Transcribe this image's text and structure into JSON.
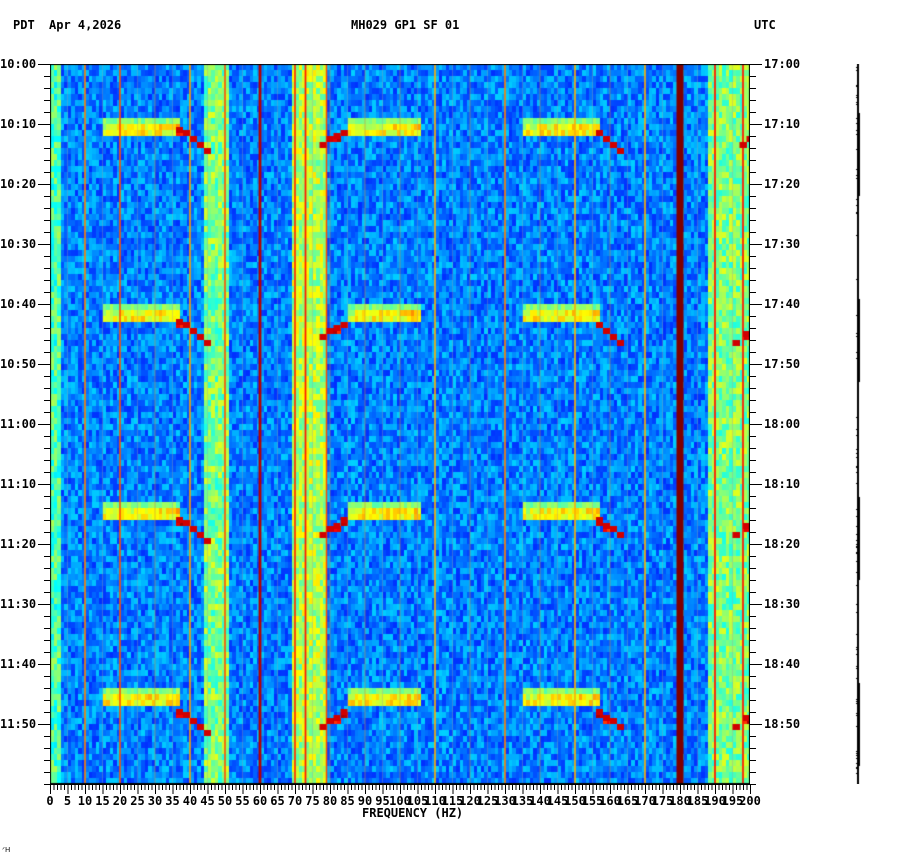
{
  "header": {
    "left_timezone": "PDT",
    "date": "Apr 4,2026",
    "station": "MH029 GP1 SF 01",
    "right_timezone": "UTC"
  },
  "footer": {
    "corner_mark": "ᐟᕼ"
  },
  "chart_data": {
    "type": "heatmap",
    "title": "MH029 GP1 SF 01",
    "subtitle": "Apr 4,2026",
    "xlabel": "FREQUENCY (HZ)",
    "ylabel_left": "PDT",
    "ylabel_right": "UTC",
    "xlim": [
      0,
      200
    ],
    "x_ticks": [
      0,
      5,
      10,
      15,
      20,
      25,
      30,
      35,
      40,
      45,
      50,
      55,
      60,
      65,
      70,
      75,
      80,
      85,
      90,
      95,
      100,
      105,
      110,
      115,
      120,
      125,
      130,
      135,
      140,
      145,
      150,
      155,
      160,
      165,
      170,
      175,
      180,
      185,
      190,
      195,
      200
    ],
    "x_minor_tick_step": 1,
    "y_ticks_left": [
      "10:00",
      "10:10",
      "10:20",
      "10:30",
      "10:40",
      "10:50",
      "11:00",
      "11:10",
      "11:20",
      "11:30",
      "11:40",
      "11:50"
    ],
    "y_ticks_right": [
      "17:00",
      "17:10",
      "17:20",
      "17:30",
      "17:40",
      "17:50",
      "18:00",
      "18:10",
      "18:20",
      "18:30",
      "18:40",
      "18:50"
    ],
    "y_range_minutes": [
      0,
      120
    ],
    "y_minor_tick_step_minutes": 2,
    "colormap": "jet",
    "background_level": 0.25,
    "persistent_lines": [
      {
        "freq_hz": 10,
        "level": 0.75,
        "width_hz": 0.4
      },
      {
        "freq_hz": 20,
        "level": 0.8,
        "width_hz": 0.4
      },
      {
        "freq_hz": 40,
        "level": 0.72,
        "width_hz": 0.4
      },
      {
        "freq_hz": 50,
        "level": 0.8,
        "width_hz": 0.4
      },
      {
        "freq_hz": 60,
        "level": 0.95,
        "width_hz": 0.8
      },
      {
        "freq_hz": 70,
        "level": 0.82,
        "width_hz": 0.5
      },
      {
        "freq_hz": 73,
        "level": 0.85,
        "width_hz": 0.5
      },
      {
        "freq_hz": 79,
        "level": 0.8,
        "width_hz": 0.4
      },
      {
        "freq_hz": 110,
        "level": 0.7,
        "width_hz": 0.4
      },
      {
        "freq_hz": 130,
        "level": 0.75,
        "width_hz": 0.4
      },
      {
        "freq_hz": 150,
        "level": 0.7,
        "width_hz": 0.4
      },
      {
        "freq_hz": 170,
        "level": 0.7,
        "width_hz": 0.4
      },
      {
        "freq_hz": 180,
        "level": 1.0,
        "width_hz": 2.0
      },
      {
        "freq_hz": 190,
        "level": 0.85,
        "width_hz": 0.5
      },
      {
        "freq_hz": 198,
        "level": 0.85,
        "width_hz": 0.5
      }
    ],
    "broad_bands": [
      {
        "freq_start_hz": 0,
        "freq_end_hz": 3,
        "level": 0.45
      },
      {
        "freq_start_hz": 44,
        "freq_end_hz": 51,
        "level": 0.5
      },
      {
        "freq_start_hz": 69,
        "freq_end_hz": 79,
        "level": 0.55
      },
      {
        "freq_start_hz": 188,
        "freq_end_hz": 200,
        "level": 0.5
      }
    ],
    "events": [
      {
        "start_time": "10:10",
        "bars": [
          [
            15,
            37
          ],
          [
            85,
            106
          ],
          [
            135,
            157
          ]
        ],
        "sweep_red": [
          [
            36,
            10.5
          ],
          [
            38,
            11
          ],
          [
            40,
            12
          ],
          [
            42,
            13
          ],
          [
            44,
            14
          ],
          [
            77,
            13
          ],
          [
            79,
            12
          ],
          [
            81,
            11.5
          ],
          [
            83,
            11
          ],
          [
            156,
            11
          ],
          [
            158,
            12
          ],
          [
            160,
            13
          ],
          [
            162,
            14
          ],
          [
            197,
            13
          ],
          [
            199,
            12
          ]
        ]
      },
      {
        "start_time": "10:41",
        "bars": [
          [
            15,
            37
          ],
          [
            85,
            106
          ],
          [
            135,
            157
          ]
        ],
        "sweep_red": [
          [
            36,
            42.5
          ],
          [
            38,
            43
          ],
          [
            40,
            44
          ],
          [
            42,
            45
          ],
          [
            44,
            46
          ],
          [
            77,
            45
          ],
          [
            79,
            44
          ],
          [
            81,
            43.5
          ],
          [
            83,
            43
          ],
          [
            156,
            43
          ],
          [
            158,
            44
          ],
          [
            160,
            45
          ],
          [
            162,
            46
          ],
          [
            195,
            46
          ],
          [
            198,
            44.5
          ]
        ]
      },
      {
        "start_time": "11:14",
        "bars": [
          [
            15,
            37
          ],
          [
            85,
            106
          ],
          [
            135,
            157
          ]
        ],
        "sweep_red": [
          [
            36,
            75.5
          ],
          [
            38,
            76
          ],
          [
            40,
            77
          ],
          [
            42,
            78
          ],
          [
            44,
            79
          ],
          [
            77,
            78
          ],
          [
            79,
            77
          ],
          [
            81,
            76.5
          ],
          [
            83,
            75.5
          ],
          [
            156,
            75.5
          ],
          [
            158,
            76.5
          ],
          [
            160,
            77
          ],
          [
            162,
            78
          ],
          [
            195,
            78
          ],
          [
            198,
            76.5
          ]
        ]
      },
      {
        "start_time": "11:45",
        "bars": [
          [
            15,
            37
          ],
          [
            85,
            106
          ],
          [
            135,
            157
          ]
        ],
        "sweep_red": [
          [
            36,
            107.5
          ],
          [
            38,
            108
          ],
          [
            40,
            109
          ],
          [
            42,
            110
          ],
          [
            44,
            111
          ],
          [
            77,
            110
          ],
          [
            79,
            109
          ],
          [
            81,
            108.5
          ],
          [
            83,
            107.5
          ],
          [
            156,
            107.5
          ],
          [
            158,
            108.5
          ],
          [
            160,
            109
          ],
          [
            162,
            110
          ],
          [
            195,
            110
          ],
          [
            198,
            108.5
          ]
        ]
      }
    ]
  }
}
